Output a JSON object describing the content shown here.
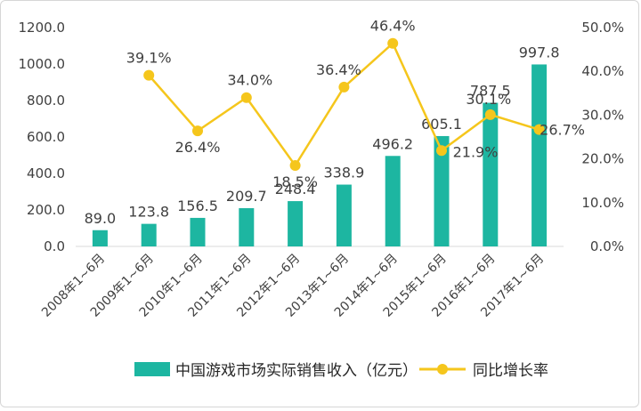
{
  "chart_data": {
    "type": "bar",
    "categories": [
      "2008年1~6月",
      "2009年1~6月",
      "2010年1~6月",
      "2011年1~6月",
      "2012年1~6月",
      "2013年1~6月",
      "2014年1~6月",
      "2015年1~6月",
      "2016年1~6月",
      "2017年1~6月"
    ],
    "series": [
      {
        "name": "中国游戏市场实际销售收入（亿元）",
        "type": "bar",
        "axis": "left",
        "color": "#1DB6A1",
        "values": [
          89.0,
          123.8,
          156.5,
          209.7,
          248.4,
          338.9,
          496.2,
          605.1,
          787.5,
          997.8
        ],
        "labels": [
          "89.0",
          "123.8",
          "156.5",
          "209.7",
          "248.4",
          "338.9",
          "496.2",
          "605.1",
          "787.5",
          "997.8"
        ]
      },
      {
        "name": "同比增长率",
        "type": "line",
        "axis": "right",
        "color": "#F5C61C",
        "values": [
          null,
          39.1,
          26.4,
          34.0,
          18.5,
          36.4,
          46.4,
          21.9,
          30.1,
          26.7
        ],
        "labels": [
          "",
          "39.1%",
          "26.4%",
          "34.0%",
          "18.5%",
          "36.4%",
          "46.4%",
          "21.9%",
          "30.1%",
          "26.7%"
        ]
      }
    ],
    "y_left": {
      "range": [
        0,
        1200
      ],
      "ticks": [
        0,
        200,
        400,
        600,
        800,
        1000,
        1200
      ],
      "tick_labels": [
        "0.0",
        "200.0",
        "400.0",
        "600.0",
        "800.0",
        "1000.0",
        "1200.0"
      ]
    },
    "y_right": {
      "range": [
        0,
        50
      ],
      "ticks": [
        0,
        10,
        20,
        30,
        40,
        50
      ],
      "tick_labels": [
        "0.0%",
        "10.0%",
        "20.0%",
        "30.0%",
        "40.0%",
        "50.0%"
      ]
    },
    "grid": false,
    "legend_position": "bottom"
  }
}
